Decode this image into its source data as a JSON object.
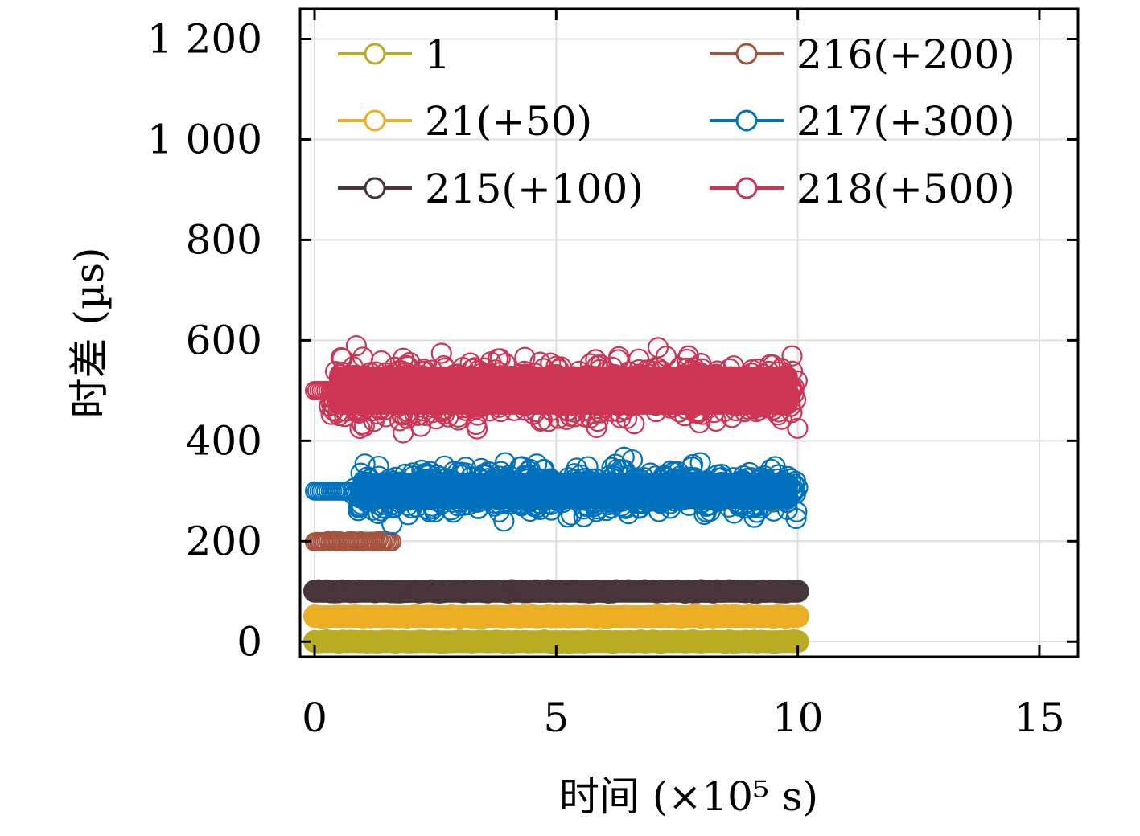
{
  "chart_data": {
    "type": "scatter",
    "xlabel": "时间 (×10⁵ s)",
    "ylabel": "时差 (µs)",
    "xlim": [
      -0.3,
      15.8
    ],
    "ylim": [
      -30,
      1260
    ],
    "xticks": [
      0,
      5,
      10,
      15
    ],
    "yticks": [
      0,
      200,
      400,
      600,
      800,
      1000,
      1200
    ],
    "xtick_labels": [
      "0",
      "5",
      "10",
      "15"
    ],
    "ytick_labels": [
      "0",
      "200",
      "400",
      "600",
      "800",
      "1 000",
      "1 200"
    ],
    "grid": true,
    "legend_position": "top",
    "series": [
      {
        "name": "1",
        "color": "#b8ac22",
        "x_range": [
          0,
          10
        ],
        "baseline": 0,
        "spread": 4,
        "marker": "open-circle",
        "dense": true
      },
      {
        "name": "21(+50)",
        "color": "#ecae22",
        "x_range": [
          0,
          10
        ],
        "baseline": 50,
        "spread": 4,
        "marker": "open-circle",
        "dense": true
      },
      {
        "name": "215(+100)",
        "color": "#48353b",
        "x_range": [
          0,
          10
        ],
        "baseline": 100,
        "spread": 4,
        "marker": "open-circle",
        "dense": true
      },
      {
        "name": "216(+200)",
        "color": "#a5533f",
        "x_range": [
          0,
          1.6
        ],
        "baseline": 200,
        "spread": 3,
        "marker": "open-circle",
        "dense": false
      },
      {
        "name": "217(+300)",
        "color": "#0072bd",
        "x_range": [
          0,
          10
        ],
        "baseline": 300,
        "spread": 60,
        "marker": "open-circle",
        "dense": false
      },
      {
        "name": "218(+500)",
        "color": "#cc3553",
        "x_range": [
          0,
          10
        ],
        "baseline": 500,
        "spread": 80,
        "marker": "open-circle",
        "dense": false
      }
    ]
  }
}
